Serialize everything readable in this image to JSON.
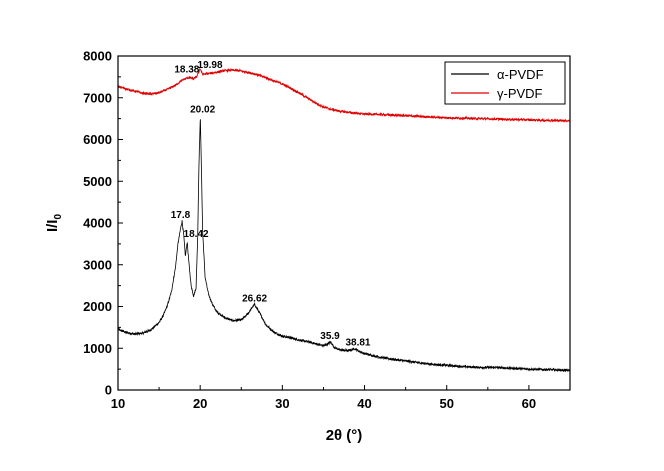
{
  "chart_data": {
    "type": "line",
    "title": "",
    "xlabel": "2θ (°)",
    "ylabel_main": "I/I",
    "ylabel_sub": "0",
    "xlim": [
      10,
      65
    ],
    "ylim": [
      0,
      8000
    ],
    "xticks": [
      10,
      20,
      30,
      40,
      50,
      60
    ],
    "yticks": [
      0,
      1000,
      2000,
      3000,
      4000,
      5000,
      6000,
      7000,
      8000
    ],
    "grid": false,
    "legend_position": "top-right",
    "series": [
      {
        "name": "α-PVDF",
        "color": "#000000",
        "x": [
          10,
          11,
          12,
          13,
          14,
          15,
          15.5,
          16,
          16.5,
          17,
          17.3,
          17.6,
          17.8,
          18.0,
          18.2,
          18.42,
          18.6,
          18.9,
          19.2,
          19.5,
          19.7,
          19.85,
          20.02,
          20.15,
          20.3,
          20.6,
          21,
          21.5,
          22,
          23,
          24,
          25,
          25.5,
          26,
          26.3,
          26.62,
          27,
          27.5,
          28,
          29,
          30,
          31,
          32,
          33,
          34,
          35,
          35.5,
          35.9,
          36.3,
          37,
          38,
          38.81,
          39.5,
          40,
          42,
          44,
          46,
          48,
          50,
          52,
          54,
          56,
          58,
          60,
          62,
          65
        ],
        "y": [
          1450,
          1380,
          1340,
          1360,
          1440,
          1620,
          1780,
          2020,
          2350,
          2950,
          3500,
          3850,
          4050,
          3700,
          3200,
          3550,
          3100,
          2500,
          2250,
          2450,
          3700,
          5400,
          6550,
          5300,
          3800,
          2700,
          2300,
          2050,
          1880,
          1730,
          1660,
          1680,
          1760,
          1880,
          1970,
          2050,
          1920,
          1750,
          1560,
          1380,
          1290,
          1250,
          1200,
          1160,
          1110,
          1060,
          1100,
          1150,
          1020,
          960,
          940,
          990,
          910,
          870,
          780,
          720,
          670,
          620,
          590,
          560,
          540,
          540,
          520,
          500,
          490,
          470
        ]
      },
      {
        "name": "γ-PVDF",
        "color": "#e00000",
        "x": [
          10,
          11,
          12,
          13,
          14,
          15,
          16,
          17,
          17.5,
          18,
          18.38,
          18.8,
          19.2,
          19.6,
          19.98,
          20.3,
          21,
          22,
          23,
          24,
          25,
          26,
          27,
          28,
          29,
          30,
          31,
          32,
          33,
          34,
          35,
          36,
          37,
          38,
          39,
          40,
          42,
          44,
          46,
          48,
          50,
          52,
          54,
          56,
          58,
          60,
          62,
          65
        ],
        "y": [
          7270,
          7210,
          7160,
          7110,
          7090,
          7120,
          7200,
          7300,
          7380,
          7440,
          7470,
          7480,
          7450,
          7510,
          7700,
          7560,
          7580,
          7610,
          7650,
          7660,
          7640,
          7600,
          7550,
          7480,
          7400,
          7330,
          7230,
          7120,
          7000,
          6880,
          6780,
          6720,
          6680,
          6650,
          6630,
          6610,
          6600,
          6580,
          6560,
          6540,
          6520,
          6510,
          6500,
          6490,
          6480,
          6470,
          6460,
          6450
        ]
      }
    ],
    "annotations": [
      {
        "text": "18.38",
        "x": 18.38,
        "y": 7600
      },
      {
        "text": "19.98",
        "x": 21.2,
        "y": 7710
      },
      {
        "text": "20.02",
        "x": 20.3,
        "y": 6650
      },
      {
        "text": "17.8",
        "x": 17.6,
        "y": 4120
      },
      {
        "text": "18.42",
        "x": 19.5,
        "y": 3660
      },
      {
        "text": "26.62",
        "x": 26.62,
        "y": 2120
      },
      {
        "text": "35.9",
        "x": 35.8,
        "y": 1220
      },
      {
        "text": "38.81",
        "x": 39.2,
        "y": 1060
      }
    ]
  }
}
